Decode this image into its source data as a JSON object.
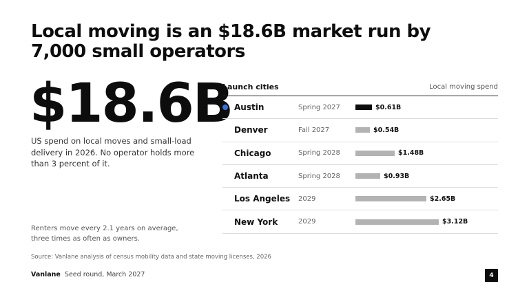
{
  "slide": {
    "title": "Local moving is an $18.6B market run by 7,000 small operators",
    "big_number": "$18.6B",
    "lead": "US spend on local moves and small-load delivery in 2026. No operator holds more than 3 percent of it.",
    "note": "Renters move every 2.1 years on average, three times as often as owners.",
    "source": "Source: Vanlane analysis of census mobility data and state moving licenses, 2026",
    "footer": {
      "brand": "Vanlane",
      "text": "Seed round, March 2027"
    },
    "page_number": "4"
  },
  "table": {
    "header_left": "Launch cities",
    "header_right": "Local moving spend",
    "max_value": 3.12,
    "highlight_color": "#3a6fd8",
    "bar_color_highlight": "#0d0d0d",
    "bar_color_default": "#b3b3b3",
    "rows": [
      {
        "city": "Austin",
        "launch": "Spring 2027",
        "value": 0.61,
        "label": "$0.61B",
        "highlight": true
      },
      {
        "city": "Denver",
        "launch": "Fall 2027",
        "value": 0.54,
        "label": "$0.54B",
        "highlight": false
      },
      {
        "city": "Chicago",
        "launch": "Spring 2028",
        "value": 1.48,
        "label": "$1.48B",
        "highlight": false
      },
      {
        "city": "Atlanta",
        "launch": "Spring 2028",
        "value": 0.93,
        "label": "$0.93B",
        "highlight": false
      },
      {
        "city": "Los Angeles",
        "launch": "2029",
        "value": 2.65,
        "label": "$2.65B",
        "highlight": false
      },
      {
        "city": "New York",
        "launch": "2029",
        "value": 3.12,
        "label": "$3.12B",
        "highlight": false
      }
    ]
  }
}
